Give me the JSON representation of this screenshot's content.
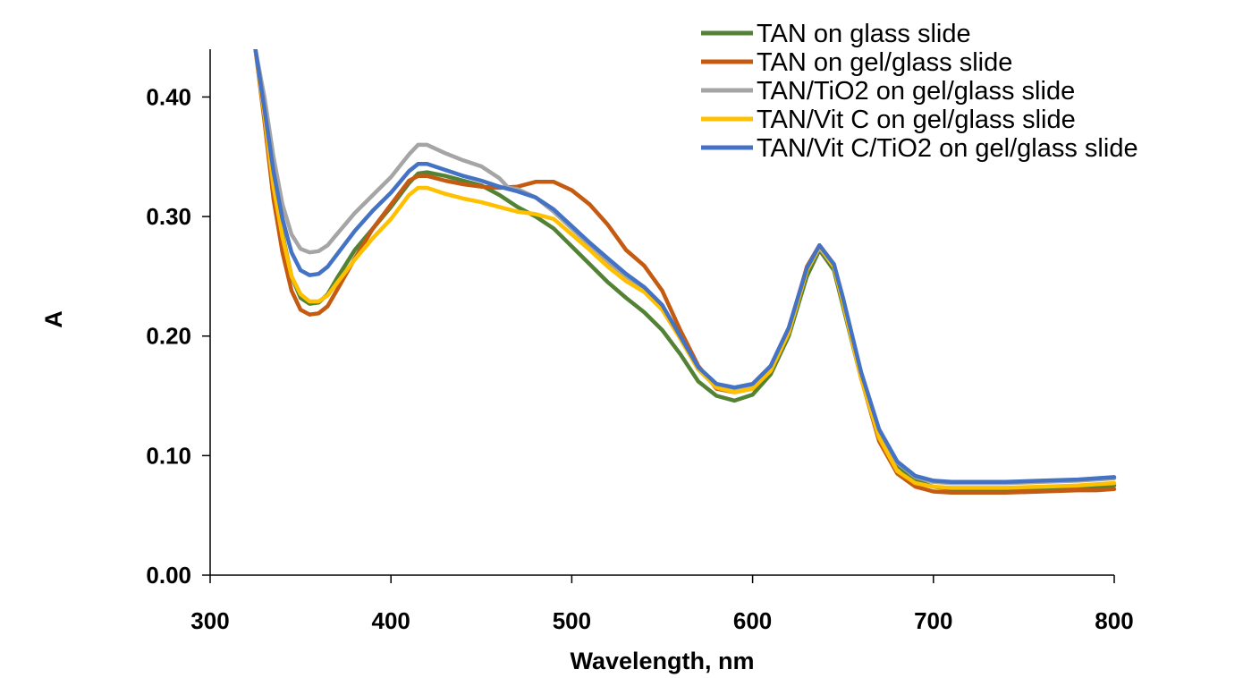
{
  "chart_data": {
    "type": "line",
    "title": "",
    "xlabel": "Wavelength, nm",
    "ylabel": "A",
    "xlim": [
      300,
      800
    ],
    "ylim": [
      0,
      0.44
    ],
    "xticks": [
      300,
      400,
      500,
      600,
      700,
      800
    ],
    "xtick_labels": [
      "300",
      "400",
      "500",
      "600",
      "700",
      "800"
    ],
    "yticks": [
      0,
      0.1,
      0.2,
      0.3,
      0.4
    ],
    "ytick_labels": [
      "0.00",
      "0.10",
      "0.20",
      "0.30",
      "0.40"
    ],
    "grid": false,
    "legend_position": "top-right",
    "series": [
      {
        "name": "TAN on glass slide",
        "color": "#548235",
        "points": [
          [
            325,
            0.44
          ],
          [
            330,
            0.39
          ],
          [
            335,
            0.33
          ],
          [
            340,
            0.285
          ],
          [
            345,
            0.25
          ],
          [
            350,
            0.232
          ],
          [
            355,
            0.227
          ],
          [
            360,
            0.228
          ],
          [
            365,
            0.235
          ],
          [
            370,
            0.248
          ],
          [
            380,
            0.272
          ],
          [
            390,
            0.29
          ],
          [
            400,
            0.308
          ],
          [
            410,
            0.328
          ],
          [
            415,
            0.336
          ],
          [
            420,
            0.337
          ],
          [
            430,
            0.334
          ],
          [
            440,
            0.33
          ],
          [
            450,
            0.326
          ],
          [
            460,
            0.318
          ],
          [
            470,
            0.308
          ],
          [
            480,
            0.3
          ],
          [
            490,
            0.29
          ],
          [
            500,
            0.275
          ],
          [
            510,
            0.26
          ],
          [
            520,
            0.245
          ],
          [
            530,
            0.232
          ],
          [
            540,
            0.22
          ],
          [
            550,
            0.205
          ],
          [
            560,
            0.185
          ],
          [
            570,
            0.162
          ],
          [
            580,
            0.15
          ],
          [
            590,
            0.146
          ],
          [
            600,
            0.151
          ],
          [
            610,
            0.168
          ],
          [
            620,
            0.2
          ],
          [
            630,
            0.25
          ],
          [
            637,
            0.272
          ],
          [
            645,
            0.255
          ],
          [
            650,
            0.225
          ],
          [
            660,
            0.165
          ],
          [
            670,
            0.12
          ],
          [
            680,
            0.092
          ],
          [
            690,
            0.079
          ],
          [
            700,
            0.074
          ],
          [
            710,
            0.072
          ],
          [
            720,
            0.072
          ],
          [
            740,
            0.072
          ],
          [
            760,
            0.073
          ],
          [
            780,
            0.073
          ],
          [
            790,
            0.074
          ],
          [
            800,
            0.075
          ]
        ]
      },
      {
        "name": "TAN on gel/glass slide",
        "color": "#C55A11",
        "points": [
          [
            325,
            0.44
          ],
          [
            330,
            0.38
          ],
          [
            335,
            0.315
          ],
          [
            340,
            0.27
          ],
          [
            345,
            0.238
          ],
          [
            350,
            0.222
          ],
          [
            355,
            0.218
          ],
          [
            360,
            0.219
          ],
          [
            365,
            0.225
          ],
          [
            370,
            0.238
          ],
          [
            380,
            0.265
          ],
          [
            390,
            0.29
          ],
          [
            400,
            0.31
          ],
          [
            410,
            0.33
          ],
          [
            415,
            0.334
          ],
          [
            420,
            0.334
          ],
          [
            430,
            0.33
          ],
          [
            440,
            0.327
          ],
          [
            450,
            0.325
          ],
          [
            460,
            0.324
          ],
          [
            470,
            0.325
          ],
          [
            480,
            0.329
          ],
          [
            490,
            0.329
          ],
          [
            500,
            0.322
          ],
          [
            510,
            0.31
          ],
          [
            520,
            0.293
          ],
          [
            530,
            0.272
          ],
          [
            540,
            0.259
          ],
          [
            550,
            0.238
          ],
          [
            560,
            0.205
          ],
          [
            570,
            0.175
          ],
          [
            580,
            0.156
          ],
          [
            590,
            0.153
          ],
          [
            600,
            0.156
          ],
          [
            610,
            0.172
          ],
          [
            620,
            0.205
          ],
          [
            630,
            0.258
          ],
          [
            637,
            0.276
          ],
          [
            645,
            0.26
          ],
          [
            650,
            0.23
          ],
          [
            660,
            0.165
          ],
          [
            670,
            0.112
          ],
          [
            680,
            0.085
          ],
          [
            690,
            0.074
          ],
          [
            700,
            0.07
          ],
          [
            710,
            0.069
          ],
          [
            720,
            0.069
          ],
          [
            740,
            0.069
          ],
          [
            760,
            0.07
          ],
          [
            780,
            0.071
          ],
          [
            790,
            0.071
          ],
          [
            800,
            0.072
          ]
        ]
      },
      {
        "name": "TAN/TiO2 on gel/glass slide",
        "color": "#A5A5A5",
        "points": [
          [
            325,
            0.44
          ],
          [
            330,
            0.4
          ],
          [
            335,
            0.35
          ],
          [
            340,
            0.31
          ],
          [
            345,
            0.285
          ],
          [
            350,
            0.273
          ],
          [
            355,
            0.27
          ],
          [
            360,
            0.271
          ],
          [
            365,
            0.276
          ],
          [
            370,
            0.285
          ],
          [
            380,
            0.303
          ],
          [
            390,
            0.318
          ],
          [
            400,
            0.333
          ],
          [
            410,
            0.352
          ],
          [
            415,
            0.36
          ],
          [
            420,
            0.36
          ],
          [
            430,
            0.353
          ],
          [
            440,
            0.347
          ],
          [
            450,
            0.342
          ],
          [
            460,
            0.332
          ],
          [
            465,
            0.324
          ],
          [
            470,
            0.323
          ],
          [
            480,
            0.316
          ],
          [
            490,
            0.304
          ],
          [
            500,
            0.29
          ],
          [
            510,
            0.276
          ],
          [
            520,
            0.262
          ],
          [
            530,
            0.25
          ],
          [
            540,
            0.24
          ],
          [
            550,
            0.225
          ],
          [
            560,
            0.198
          ],
          [
            570,
            0.172
          ],
          [
            580,
            0.158
          ],
          [
            590,
            0.155
          ],
          [
            600,
            0.158
          ],
          [
            610,
            0.173
          ],
          [
            620,
            0.205
          ],
          [
            630,
            0.255
          ],
          [
            637,
            0.274
          ],
          [
            645,
            0.258
          ],
          [
            650,
            0.23
          ],
          [
            660,
            0.168
          ],
          [
            670,
            0.12
          ],
          [
            680,
            0.094
          ],
          [
            690,
            0.082
          ],
          [
            700,
            0.078
          ],
          [
            710,
            0.077
          ],
          [
            720,
            0.077
          ],
          [
            740,
            0.077
          ],
          [
            760,
            0.078
          ],
          [
            780,
            0.079
          ],
          [
            790,
            0.08
          ],
          [
            800,
            0.081
          ]
        ]
      },
      {
        "name": "TAN/Vit C on gel/glass slide",
        "color": "#FFC000",
        "points": [
          [
            325,
            0.44
          ],
          [
            330,
            0.385
          ],
          [
            335,
            0.325
          ],
          [
            340,
            0.283
          ],
          [
            345,
            0.25
          ],
          [
            350,
            0.235
          ],
          [
            355,
            0.229
          ],
          [
            360,
            0.229
          ],
          [
            365,
            0.234
          ],
          [
            370,
            0.244
          ],
          [
            380,
            0.264
          ],
          [
            390,
            0.282
          ],
          [
            400,
            0.298
          ],
          [
            410,
            0.318
          ],
          [
            415,
            0.324
          ],
          [
            420,
            0.324
          ],
          [
            430,
            0.319
          ],
          [
            440,
            0.315
          ],
          [
            450,
            0.312
          ],
          [
            460,
            0.308
          ],
          [
            470,
            0.304
          ],
          [
            480,
            0.302
          ],
          [
            490,
            0.298
          ],
          [
            500,
            0.285
          ],
          [
            510,
            0.272
          ],
          [
            520,
            0.258
          ],
          [
            530,
            0.246
          ],
          [
            540,
            0.237
          ],
          [
            550,
            0.222
          ],
          [
            560,
            0.198
          ],
          [
            570,
            0.172
          ],
          [
            580,
            0.157
          ],
          [
            590,
            0.153
          ],
          [
            600,
            0.156
          ],
          [
            610,
            0.171
          ],
          [
            620,
            0.203
          ],
          [
            630,
            0.255
          ],
          [
            637,
            0.275
          ],
          [
            645,
            0.258
          ],
          [
            650,
            0.228
          ],
          [
            660,
            0.165
          ],
          [
            670,
            0.115
          ],
          [
            680,
            0.087
          ],
          [
            690,
            0.077
          ],
          [
            700,
            0.074
          ],
          [
            710,
            0.073
          ],
          [
            720,
            0.073
          ],
          [
            740,
            0.073
          ],
          [
            760,
            0.074
          ],
          [
            780,
            0.075
          ],
          [
            790,
            0.076
          ],
          [
            800,
            0.077
          ]
        ]
      },
      {
        "name": "TAN/Vit C/TiO2 on gel/glass slide",
        "color": "#4472C4",
        "points": [
          [
            325,
            0.44
          ],
          [
            330,
            0.39
          ],
          [
            335,
            0.338
          ],
          [
            340,
            0.298
          ],
          [
            345,
            0.27
          ],
          [
            350,
            0.255
          ],
          [
            355,
            0.251
          ],
          [
            360,
            0.252
          ],
          [
            365,
            0.258
          ],
          [
            370,
            0.268
          ],
          [
            380,
            0.288
          ],
          [
            390,
            0.305
          ],
          [
            400,
            0.32
          ],
          [
            410,
            0.338
          ],
          [
            415,
            0.344
          ],
          [
            420,
            0.344
          ],
          [
            430,
            0.339
          ],
          [
            440,
            0.334
          ],
          [
            450,
            0.33
          ],
          [
            460,
            0.325
          ],
          [
            470,
            0.321
          ],
          [
            480,
            0.316
          ],
          [
            490,
            0.306
          ],
          [
            500,
            0.292
          ],
          [
            510,
            0.278
          ],
          [
            520,
            0.265
          ],
          [
            530,
            0.252
          ],
          [
            540,
            0.241
          ],
          [
            550,
            0.226
          ],
          [
            560,
            0.2
          ],
          [
            570,
            0.174
          ],
          [
            580,
            0.16
          ],
          [
            590,
            0.157
          ],
          [
            600,
            0.16
          ],
          [
            610,
            0.175
          ],
          [
            620,
            0.207
          ],
          [
            630,
            0.257
          ],
          [
            637,
            0.276
          ],
          [
            645,
            0.26
          ],
          [
            650,
            0.232
          ],
          [
            660,
            0.17
          ],
          [
            670,
            0.122
          ],
          [
            680,
            0.095
          ],
          [
            690,
            0.083
          ],
          [
            700,
            0.079
          ],
          [
            710,
            0.078
          ],
          [
            720,
            0.078
          ],
          [
            740,
            0.078
          ],
          [
            760,
            0.079
          ],
          [
            780,
            0.08
          ],
          [
            790,
            0.081
          ],
          [
            800,
            0.082
          ]
        ]
      }
    ]
  }
}
